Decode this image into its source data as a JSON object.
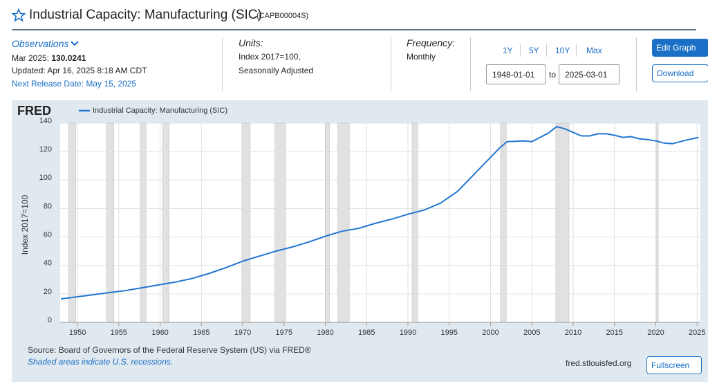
{
  "header": {
    "title": "Industrial Capacity: Manufacturing (SIC)",
    "series_id": "(CAPB00004S)"
  },
  "observations": {
    "label": "Observations",
    "date": "Mar 2025:",
    "value": "130.0241",
    "updated": "Updated: Apr 16, 2025 8:18 AM CDT",
    "next_release": "Next Release Date: May 15, 2025"
  },
  "units": {
    "label": "Units:",
    "line1": "Index 2017=100,",
    "line2": "Seasonally Adjusted"
  },
  "frequency": {
    "label": "Frequency:",
    "value": "Monthly"
  },
  "range": {
    "buttons": [
      "1Y",
      "5Y",
      "10Y",
      "Max"
    ],
    "start": "1948-01-01",
    "to": "to",
    "end": "2025-03-01"
  },
  "actions": {
    "edit": "Edit Graph",
    "download": "Download",
    "fullscreen": "Fullscreen"
  },
  "chart_data": {
    "type": "line",
    "logo": "FRED",
    "y_label": "Index 2017=100",
    "source": "Source: Board of Governors of the Federal Reserve System (US) via FRED®",
    "note": "Shaded areas indicate U.S. recessions.",
    "site": "fred.stlouisfed.org",
    "x": [
      1948,
      1950,
      1952,
      1954,
      1956,
      1958,
      1960,
      1962,
      1964,
      1966,
      1968,
      1970,
      1972,
      1974,
      1976,
      1978,
      1980,
      1982,
      1984,
      1986,
      1988,
      1990,
      1992,
      1994,
      1996,
      1998,
      2000,
      2001,
      2002,
      2004,
      2005,
      2006,
      2007,
      2008,
      2009,
      2010,
      2011,
      2012,
      2013,
      2014,
      2015,
      2016,
      2017,
      2018,
      2019,
      2020,
      2021,
      2022,
      2023,
      2024,
      2025.17
    ],
    "series": [
      {
        "name": "Industrial Capacity: Manufacturing (SIC)",
        "color": "#2276d2",
        "values": [
          16.5,
          18,
          19.5,
          21,
          22.5,
          24.5,
          26.5,
          28.5,
          31,
          34.5,
          38.5,
          43,
          46.5,
          50,
          53,
          56.5,
          60.5,
          64,
          66,
          69.5,
          72.5,
          76,
          79,
          84,
          92,
          104,
          116,
          122,
          127,
          127.5,
          127,
          130,
          133,
          137.5,
          136,
          133.5,
          131,
          131,
          132.5,
          132.5,
          131.5,
          130,
          130.5,
          129,
          128.5,
          127.5,
          126,
          125.5,
          127,
          128.5,
          130
        ]
      }
    ],
    "recessions": [
      [
        1948.9,
        1949.8
      ],
      [
        1953.5,
        1954.4
      ],
      [
        1957.6,
        1958.3
      ],
      [
        1960.3,
        1961.1
      ],
      [
        1969.9,
        1970.9
      ],
      [
        1973.9,
        1975.2
      ],
      [
        1980.0,
        1980.5
      ],
      [
        1981.5,
        1982.9
      ],
      [
        1990.5,
        1991.2
      ],
      [
        2001.2,
        2001.9
      ],
      [
        2007.9,
        2009.5
      ],
      [
        2020.1,
        2020.3
      ]
    ],
    "xlim": [
      1947.9,
      2025.4
    ],
    "ylim": [
      0,
      140
    ],
    "xticks": [
      1950,
      1955,
      1960,
      1965,
      1970,
      1975,
      1980,
      1985,
      1990,
      1995,
      2000,
      2005,
      2010,
      2015,
      2020,
      2025
    ],
    "yticks": [
      0,
      20,
      40,
      60,
      80,
      100,
      120,
      140
    ],
    "grid": true
  }
}
